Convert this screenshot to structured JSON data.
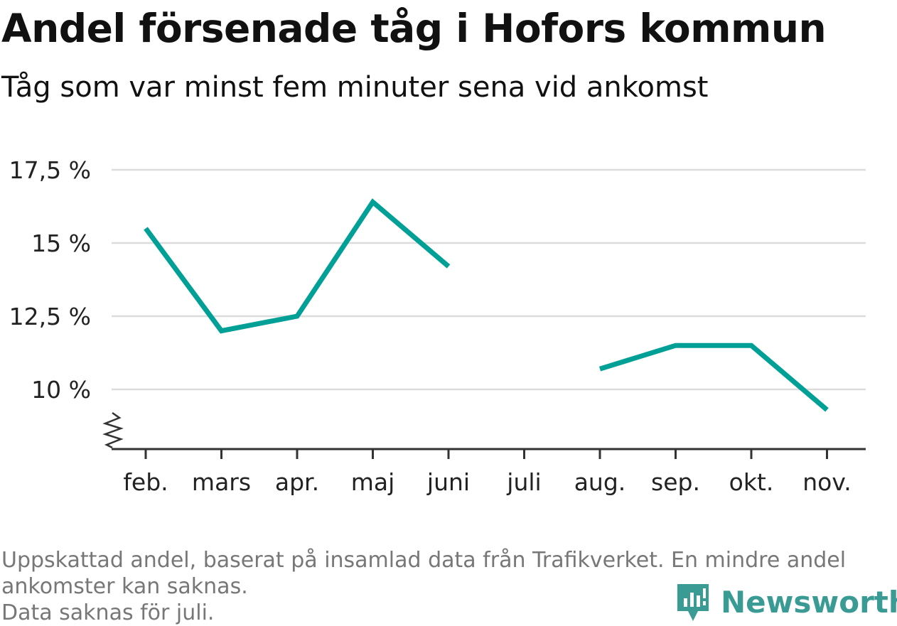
{
  "title": "Andel försenade tåg i Hofors kommun",
  "subtitle": "Tåg som var minst fem minuter sena vid ankomst",
  "chart_data": {
    "type": "line",
    "categories": [
      "feb.",
      "mars",
      "apr.",
      "maj",
      "juni",
      "juli",
      "aug.",
      "sep.",
      "okt.",
      "nov."
    ],
    "series": [
      {
        "values": [
          15.5,
          12.0,
          12.5,
          16.4,
          14.2,
          null,
          10.7,
          11.5,
          11.5,
          9.3
        ]
      }
    ],
    "yticks": [
      10,
      12.5,
      15,
      17.5
    ],
    "ytick_labels": [
      "10 %",
      "12,5 %",
      "15 %",
      "17,5 %"
    ],
    "ylim": [
      8,
      17.5
    ],
    "axis_break": true,
    "grid": true,
    "line_color": "#00a097"
  },
  "footnote": {
    "line1": "Uppskattad andel, baserat på insamlad data från Trafikverket. En mindre andel",
    "line2": "ankomster kan saknas.",
    "line3": "Data saknas för juli."
  },
  "brand": {
    "name": "Newsworthy",
    "icon": "newsworthy-logo-icon",
    "color": "#3a9b94"
  }
}
